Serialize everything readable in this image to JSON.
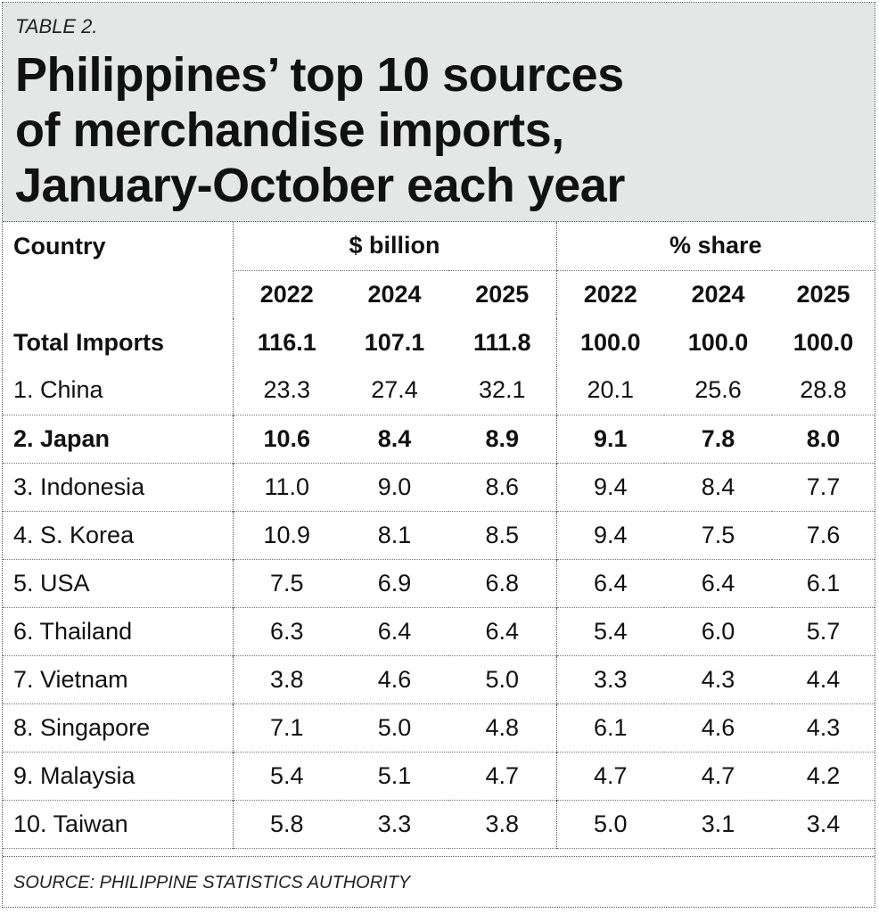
{
  "label": "TABLE 2.",
  "title_lines": [
    "Philippines’ top 10 sources",
    "of merchandise imports,",
    "January-October each year"
  ],
  "source": "SOURCE: PHILIPPINE STATISTICS AUTHORITY",
  "chart_data": {
    "type": "table",
    "label": "TABLE 2.",
    "title": "Philippines’ top 10 sources of merchandise imports, January-October each year",
    "column_header": "Country",
    "groups": [
      {
        "name": "$ billion",
        "years": [
          "2022",
          "2024",
          "2025"
        ]
      },
      {
        "name": "% share",
        "years": [
          "2022",
          "2024",
          "2025"
        ]
      }
    ],
    "rows": [
      {
        "name": "Total Imports",
        "values": [
          "116.1",
          "107.1",
          "111.8",
          "100.0",
          "100.0",
          "100.0"
        ]
      },
      {
        "name": "1. China",
        "values": [
          "23.3",
          "27.4",
          "32.1",
          "20.1",
          "25.6",
          "28.8"
        ]
      },
      {
        "name": "2. Japan",
        "values": [
          "10.6",
          "8.4",
          "8.9",
          "9.1",
          "7.8",
          "8.0"
        ]
      },
      {
        "name": "3. Indonesia",
        "values": [
          "11.0",
          "9.0",
          "8.6",
          "9.4",
          "8.4",
          "7.7"
        ]
      },
      {
        "name": "4. S. Korea",
        "values": [
          "10.9",
          "8.1",
          "8.5",
          "9.4",
          "7.5",
          "7.6"
        ]
      },
      {
        "name": "5. USA",
        "values": [
          "7.5",
          "6.9",
          "6.8",
          "6.4",
          "6.4",
          "6.1"
        ]
      },
      {
        "name": "6. Thailand",
        "values": [
          "6.3",
          "6.4",
          "6.4",
          "5.4",
          "6.0",
          "5.7"
        ]
      },
      {
        "name": "7. Vietnam",
        "values": [
          "3.8",
          "4.6",
          "5.0",
          "3.3",
          "4.3",
          "4.4"
        ]
      },
      {
        "name": "8. Singapore",
        "values": [
          "7.1",
          "5.0",
          "4.8",
          "6.1",
          "4.6",
          "4.3"
        ]
      },
      {
        "name": "9. Malaysia",
        "values": [
          "5.4",
          "5.1",
          "4.7",
          "4.7",
          "4.7",
          "4.2"
        ]
      },
      {
        "name": "10. Taiwan",
        "values": [
          "5.8",
          "3.3",
          "3.8",
          "5.0",
          "3.1",
          "3.4"
        ]
      }
    ],
    "source": "SOURCE: PHILIPPINE STATISTICS AUTHORITY"
  }
}
